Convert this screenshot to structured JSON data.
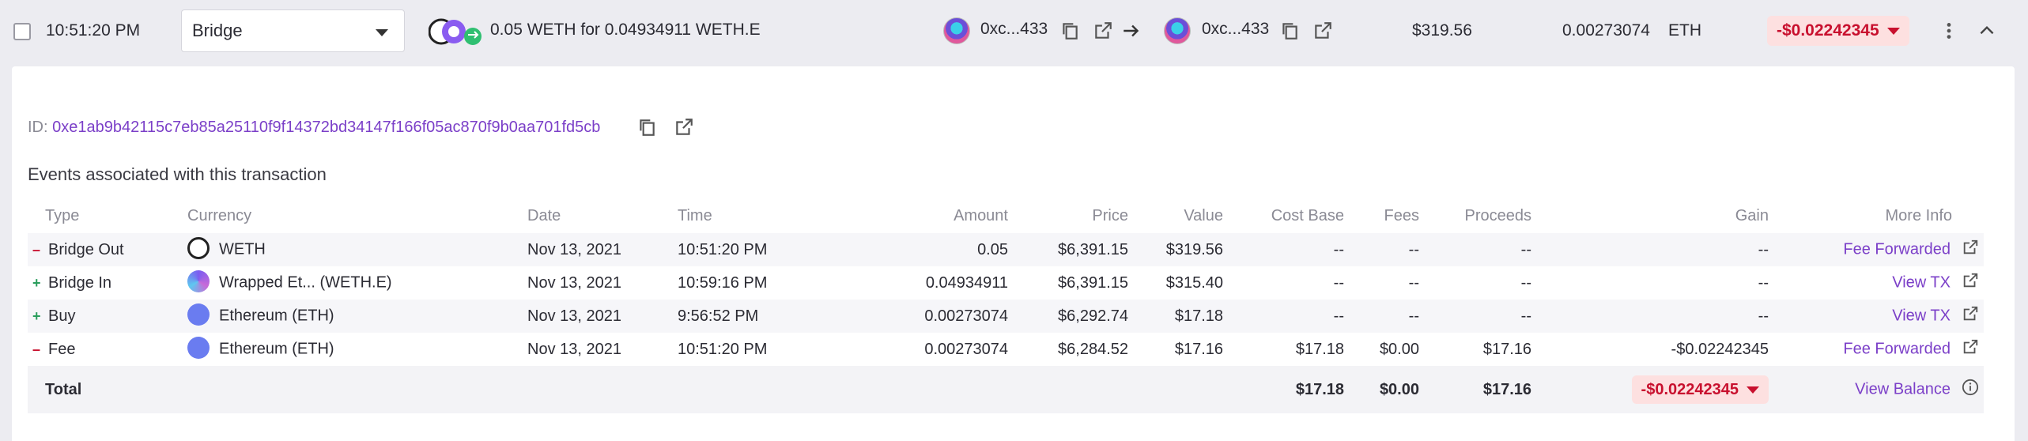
{
  "row": {
    "time": "10:51:20 PM",
    "type_select": "Bridge",
    "description": "0.05 WETH for 0.04934911 WETH.E",
    "from_address": "0xc...433",
    "to_address": "0xc...433",
    "value": "$319.56",
    "fee_amount": "0.00273074",
    "fee_currency": "ETH",
    "gain": "-$0.02242345"
  },
  "detail": {
    "id_label": "ID:",
    "id_value": "0xe1ab9b42115c7eb85a25110f9f14372bd34147f166f05ac870f9b0aa701fd5cb",
    "events_heading": "Events associated with this transaction"
  },
  "table": {
    "headers": {
      "type": "Type",
      "currency": "Currency",
      "date": "Date",
      "time": "Time",
      "amount": "Amount",
      "price": "Price",
      "value": "Value",
      "cost_base": "Cost Base",
      "fees": "Fees",
      "proceeds": "Proceeds",
      "gain": "Gain",
      "more_info": "More Info"
    },
    "rows": [
      {
        "sign": "–",
        "type": "Bridge Out",
        "currency": "WETH",
        "date": "Nov 13, 2021",
        "time": "10:51:20 PM",
        "amount": "0.05",
        "price": "$6,391.15",
        "value": "$319.56",
        "cost_base": "--",
        "fees": "--",
        "proceeds": "--",
        "gain": "--",
        "more_info": "Fee Forwarded"
      },
      {
        "sign": "+",
        "type": "Bridge In",
        "currency": "Wrapped Et... (WETH.E)",
        "date": "Nov 13, 2021",
        "time": "10:59:16 PM",
        "amount": "0.04934911",
        "price": "$6,391.15",
        "value": "$315.40",
        "cost_base": "--",
        "fees": "--",
        "proceeds": "--",
        "gain": "--",
        "more_info": "View TX"
      },
      {
        "sign": "+",
        "type": "Buy",
        "currency": "Ethereum (ETH)",
        "date": "Nov 13, 2021",
        "time": "9:56:52 PM",
        "amount": "0.00273074",
        "price": "$6,292.74",
        "value": "$17.18",
        "cost_base": "--",
        "fees": "--",
        "proceeds": "--",
        "gain": "--",
        "more_info": "View TX"
      },
      {
        "sign": "–",
        "type": "Fee",
        "currency": "Ethereum (ETH)",
        "date": "Nov 13, 2021",
        "time": "10:51:20 PM",
        "amount": "0.00273074",
        "price": "$6,284.52",
        "value": "$17.16",
        "cost_base": "$17.18",
        "fees": "$0.00",
        "proceeds": "$17.16",
        "gain": "-$0.02242345",
        "more_info": "Fee Forwarded"
      }
    ],
    "total": {
      "label": "Total",
      "cost_base": "$17.18",
      "fees": "$0.00",
      "proceeds": "$17.16",
      "gain": "-$0.02242345",
      "more_info": "View Balance"
    }
  },
  "colors": {
    "accent": "#7b3fc8",
    "negative": "#c8102e",
    "negative_bg": "#fde0e0"
  },
  "icons": [
    "checkbox",
    "chevron-down-icon",
    "copy-icon",
    "external-link-icon",
    "arrow-right-icon",
    "more-vert-icon",
    "chevron-up-icon",
    "info-icon"
  ]
}
